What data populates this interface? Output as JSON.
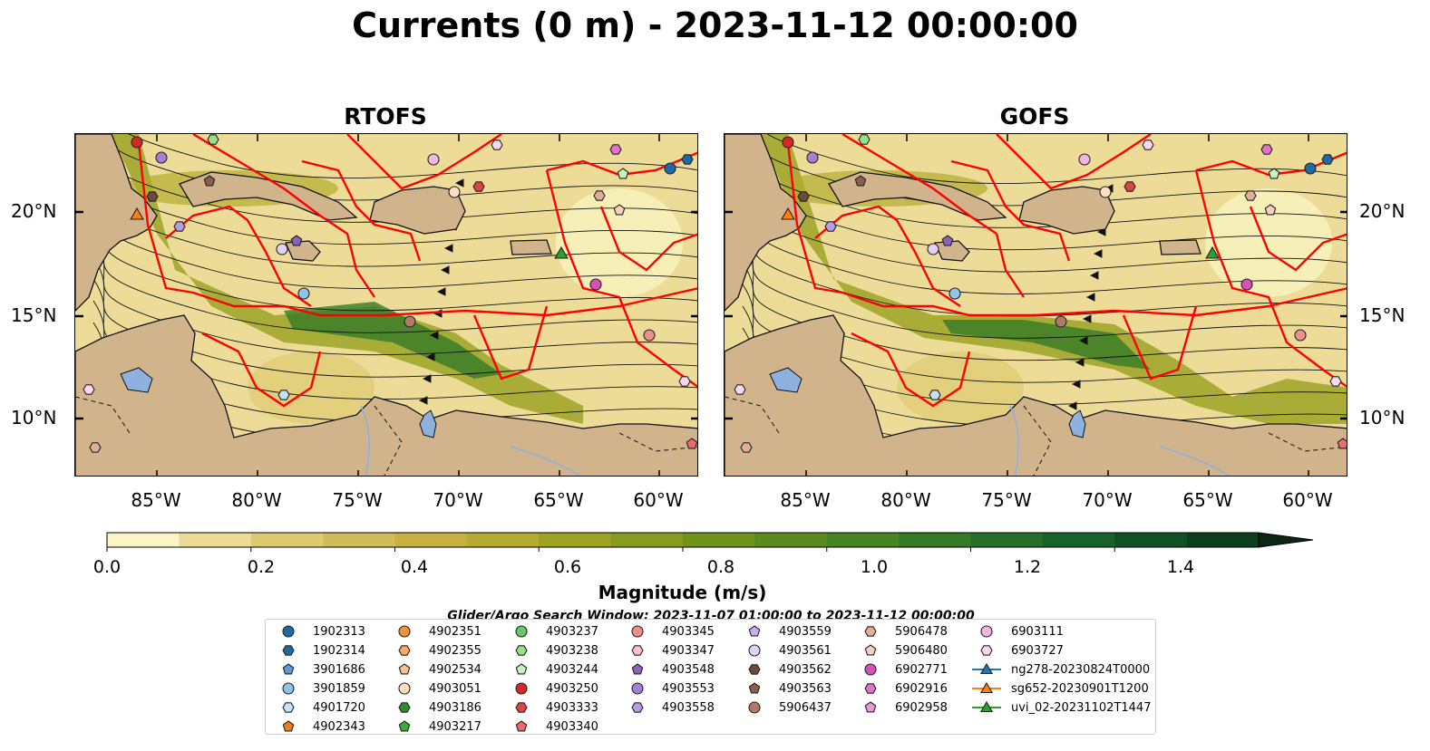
{
  "title": "Currents (0 m) - 2023-11-12 00:00:00",
  "panels": [
    {
      "title": "RTOFS",
      "variant": 0
    },
    {
      "title": "GOFS",
      "variant": 1
    }
  ],
  "map": {
    "lon_range": [
      -89,
      -58
    ],
    "lat_range": [
      7,
      23.7
    ],
    "x_ticks": [
      "85°W",
      "80°W",
      "75°W",
      "70°W",
      "65°W",
      "60°W"
    ],
    "y_ticks": [
      "20°N",
      "15°N",
      "10°N"
    ],
    "land_color": "#d2b48c",
    "lake_color": "#8fb1e0",
    "track_color": "#ff0000"
  },
  "colorbar": {
    "label": "Magnitude (m/s)",
    "ticks": [
      "0.0",
      "0.2",
      "0.4",
      "0.6",
      "0.8",
      "1.0",
      "1.2",
      "1.4"
    ],
    "range": [
      0,
      1.6
    ],
    "step": 0.1,
    "extend": "max",
    "colors": [
      "#fbf6c5",
      "#ecdc98",
      "#dfca70",
      "#d2bc58",
      "#c6b141",
      "#b4ab2f",
      "#9ea324",
      "#879c1c",
      "#6f9419",
      "#5a8c1d",
      "#468423",
      "#347b27",
      "#24702b",
      "#17622a",
      "#0f5024",
      "#0c3f1d",
      "#0b311a",
      "#0c2514"
    ]
  },
  "legend": {
    "title": "Glider/Argo Search Window: 2023-11-07 01:00:00 to 2023-11-12 00:00:00",
    "columns": [
      [
        {
          "label": "1902313",
          "marker": "circle",
          "color": "#1f6aa5"
        },
        {
          "label": "1902314",
          "marker": "hexagon",
          "color": "#1f6aa5"
        },
        {
          "label": "3901686",
          "marker": "pentagon",
          "color": "#5b9bd5"
        },
        {
          "label": "3901859",
          "marker": "circle",
          "color": "#8ec3ea"
        },
        {
          "label": "4901720",
          "marker": "hexagon",
          "color": "#c6e2f7"
        },
        {
          "label": "4902343",
          "marker": "pentagon",
          "color": "#f07d1a"
        }
      ],
      [
        {
          "label": "4902351",
          "marker": "circle",
          "color": "#f0923a"
        },
        {
          "label": "4902355",
          "marker": "hexagon",
          "color": "#f7aa6a"
        },
        {
          "label": "4902534",
          "marker": "pentagon",
          "color": "#f9c491"
        },
        {
          "label": "4903051",
          "marker": "circle",
          "color": "#fde0c0"
        },
        {
          "label": "4903186",
          "marker": "hexagon",
          "color": "#2e8b2e"
        },
        {
          "label": "4903217",
          "marker": "pentagon",
          "color": "#3aaa3a"
        }
      ],
      [
        {
          "label": "4903237",
          "marker": "circle",
          "color": "#6cc56c"
        },
        {
          "label": "4903238",
          "marker": "hexagon",
          "color": "#98df8a"
        },
        {
          "label": "4903244",
          "marker": "pentagon",
          "color": "#c6f2c0"
        },
        {
          "label": "4903250",
          "marker": "circle",
          "color": "#d62728"
        },
        {
          "label": "4903333",
          "marker": "hexagon",
          "color": "#e04344"
        },
        {
          "label": "4903340",
          "marker": "pentagon",
          "color": "#ef6a6b"
        }
      ],
      [
        {
          "label": "4903345",
          "marker": "circle",
          "color": "#f08f8f"
        },
        {
          "label": "4903347",
          "marker": "hexagon",
          "color": "#fbc3c3"
        },
        {
          "label": "4903548",
          "marker": "pentagon",
          "color": "#8c62b8"
        },
        {
          "label": "4903553",
          "marker": "circle",
          "color": "#a67fd0"
        },
        {
          "label": "4903558",
          "marker": "hexagon",
          "color": "#b99be0"
        }
      ],
      [
        {
          "label": "4903559",
          "marker": "pentagon",
          "color": "#c9b0ec"
        },
        {
          "label": "4903561",
          "marker": "circle",
          "color": "#e1d0f7"
        },
        {
          "label": "4903562",
          "marker": "hexagon",
          "color": "#6e4a3c"
        },
        {
          "label": "4903563",
          "marker": "pentagon",
          "color": "#8c5e4c"
        },
        {
          "label": "5906437",
          "marker": "circle",
          "color": "#b27a66"
        }
      ],
      [
        {
          "label": "5906478",
          "marker": "hexagon",
          "color": "#e4ad9a"
        },
        {
          "label": "5906480",
          "marker": "pentagon",
          "color": "#f6d1c3"
        },
        {
          "label": "6902771",
          "marker": "circle",
          "color": "#d650b8"
        },
        {
          "label": "6902916",
          "marker": "hexagon",
          "color": "#e373c9"
        },
        {
          "label": "6902958",
          "marker": "pentagon",
          "color": "#ee97d6"
        }
      ],
      [
        {
          "label": "6903111",
          "marker": "circle",
          "color": "#f5b5e3"
        },
        {
          "label": "6903727",
          "marker": "hexagon",
          "color": "#fbd8f0"
        },
        {
          "label": "ng278-20230824T0000",
          "marker": "triangle-line",
          "color": "#1f77b4"
        },
        {
          "label": "sg652-20230901T1200",
          "marker": "triangle-line",
          "color": "#ff7f0e"
        },
        {
          "label": "uvi_02-20231102T1447",
          "marker": "triangle-line",
          "color": "#2ca02c"
        }
      ]
    ]
  }
}
